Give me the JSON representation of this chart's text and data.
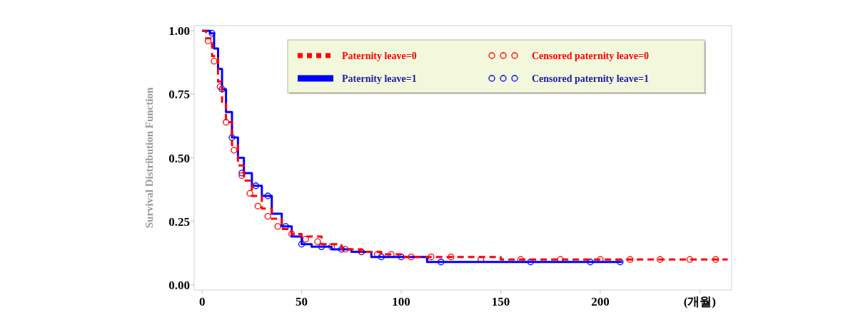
{
  "chart_data": {
    "type": "step",
    "ylabel": "Survival Distribution Function",
    "xlim": [
      -4,
      266
    ],
    "ylim": [
      -0.02,
      1.02
    ],
    "xticks": [
      0,
      50,
      100,
      150,
      200,
      {
        "value": 250,
        "label": "(개월)"
      }
    ],
    "yticks": [
      {
        "value": 0,
        "label": "0.00"
      },
      {
        "value": 0.25,
        "label": "0.25"
      },
      {
        "value": 0.5,
        "label": "0.50"
      },
      {
        "value": 0.75,
        "label": "0.75"
      },
      {
        "value": 1,
        "label": "1.00"
      }
    ],
    "grid": false,
    "legend": "top right",
    "series": [
      {
        "name": "Paternity leave=0",
        "color": "#ff0000",
        "line_style": "dashed",
        "x": [
          0,
          2,
          5,
          8,
          10,
          12,
          15,
          18,
          21,
          25,
          30,
          35,
          40,
          45,
          50,
          60,
          70,
          80,
          90,
          100,
          120,
          150,
          264
        ],
        "values": [
          1,
          0.97,
          0.9,
          0.8,
          0.72,
          0.64,
          0.55,
          0.47,
          0.41,
          0.35,
          0.3,
          0.26,
          0.22,
          0.2,
          0.19,
          0.16,
          0.14,
          0.13,
          0.12,
          0.11,
          0.11,
          0.1,
          0.1
        ]
      },
      {
        "name": "Paternity leave=1",
        "color": "#0000ff",
        "line_style": "solid",
        "x": [
          0,
          4,
          6,
          8,
          10,
          12,
          15,
          18,
          21,
          25,
          30,
          35,
          40,
          45,
          50,
          55,
          65,
          75,
          85,
          100,
          113,
          211
        ],
        "values": [
          1,
          0.99,
          0.93,
          0.85,
          0.77,
          0.68,
          0.58,
          0.5,
          0.44,
          0.39,
          0.35,
          0.28,
          0.23,
          0.19,
          0.16,
          0.15,
          0.14,
          0.13,
          0.11,
          0.11,
          0.09,
          0.09
        ]
      },
      {
        "name": "Censored paternity leave=0",
        "type": "scatter",
        "marker": "circle",
        "color": "#ff0000",
        "x": [
          3,
          6,
          9,
          12,
          16,
          20,
          24,
          28,
          33,
          38,
          45,
          52,
          58,
          65,
          72,
          80,
          88,
          95,
          105,
          115,
          125,
          140,
          160,
          180,
          200,
          215,
          230,
          245,
          258
        ],
        "values": [
          0.96,
          0.88,
          0.78,
          0.64,
          0.53,
          0.43,
          0.36,
          0.31,
          0.27,
          0.23,
          0.2,
          0.18,
          0.17,
          0.15,
          0.14,
          0.13,
          0.12,
          0.12,
          0.11,
          0.11,
          0.11,
          0.1,
          0.1,
          0.1,
          0.1,
          0.1,
          0.1,
          0.1,
          0.1
        ]
      },
      {
        "name": "Censored paternity leave=1",
        "type": "scatter",
        "marker": "circle",
        "color": "#0000ff",
        "x": [
          5,
          10,
          15,
          20,
          27,
          33,
          42,
          50,
          60,
          70,
          80,
          90,
          100,
          120,
          165,
          195,
          210
        ],
        "values": [
          0.99,
          0.77,
          0.58,
          0.44,
          0.39,
          0.35,
          0.23,
          0.16,
          0.15,
          0.14,
          0.13,
          0.11,
          0.11,
          0.09,
          0.09,
          0.09,
          0.09
        ]
      }
    ]
  }
}
